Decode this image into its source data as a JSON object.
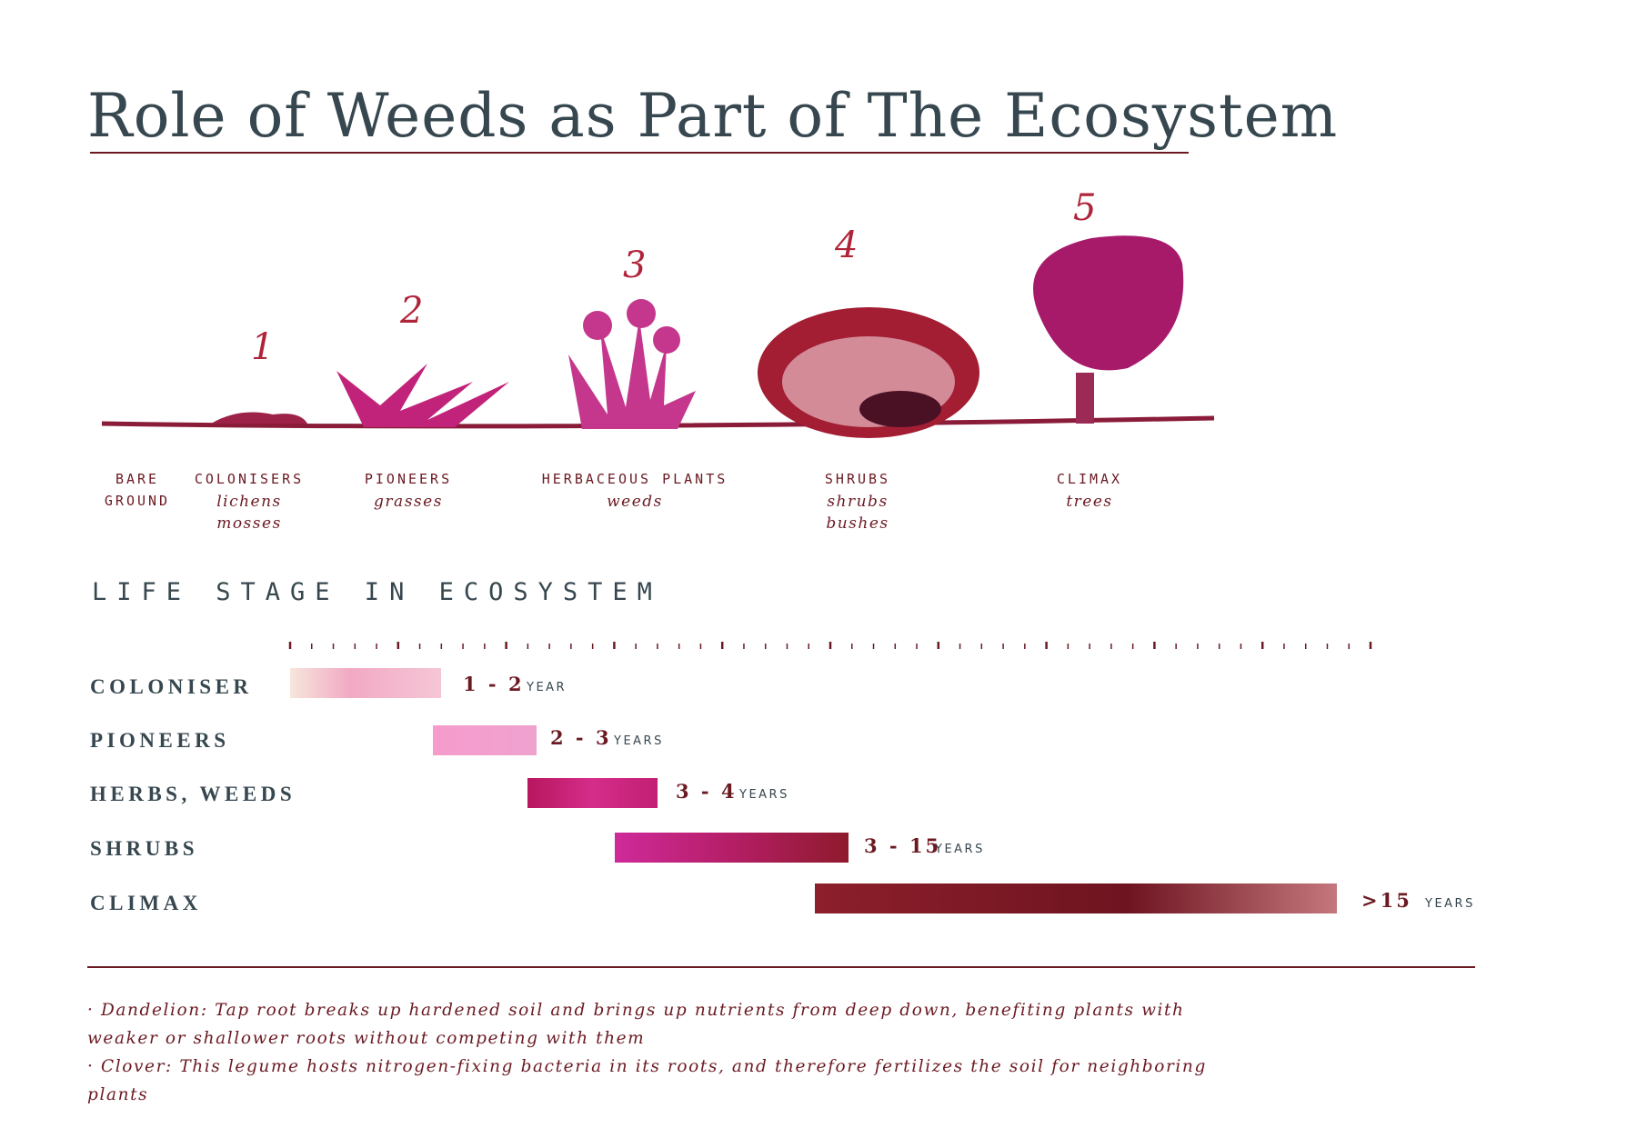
{
  "title": "Role of Weeds as Part of The Ecosystem",
  "illustration_numbers": [
    "1",
    "2",
    "3",
    "4",
    "5"
  ],
  "stages": [
    {
      "name": [
        "BARE",
        "GROUND"
      ],
      "examples": []
    },
    {
      "name": [
        "COLONISERS"
      ],
      "examples": [
        "lichens",
        "mosses"
      ]
    },
    {
      "name": [
        "PIONEERS"
      ],
      "examples": [
        "grasses"
      ]
    },
    {
      "name": [
        "HERBACEOUS PLANTS"
      ],
      "examples": [
        "weeds"
      ]
    },
    {
      "name": [
        "SHRUBS"
      ],
      "examples": [
        "shrubs",
        "bushes"
      ]
    },
    {
      "name": [
        "CLIMAX"
      ],
      "examples": [
        "trees"
      ]
    }
  ],
  "section_title": "LIFE STAGE IN ECOSYSTEM",
  "timeline": [
    {
      "label": "COLONISER",
      "range": "1 - 2",
      "unit": "YEAR"
    },
    {
      "label": "PIONEERS",
      "range": "2 - 3",
      "unit": "YEARS"
    },
    {
      "label": "HERBS, WEEDS",
      "range": "3 - 4",
      "unit": "YEARS"
    },
    {
      "label": "SHRUBS",
      "range": "3 - 15",
      "unit": "YEARS"
    },
    {
      "label": "CLIMAX",
      "range": ">15",
      "unit": "YEARS"
    }
  ],
  "notes": [
    "· Dandelion: Tap root breaks up hardened soil and brings up nutrients from deep down, benefiting plants with weaker or shallower roots without competing with them",
    "· Clover: This legume hosts nitrogen-fixing bacteria in its roots, and therefore fertilizes the soil for neighboring plants"
  ]
}
